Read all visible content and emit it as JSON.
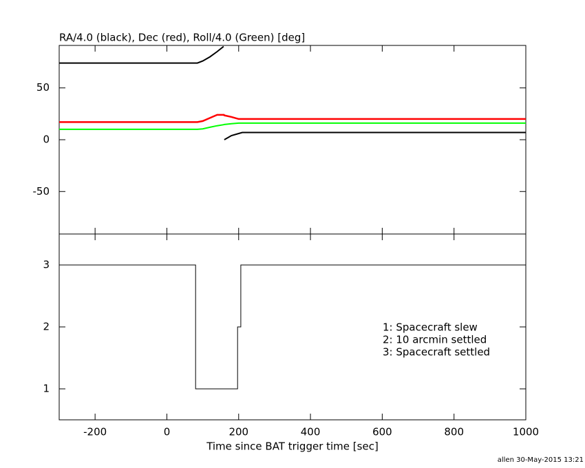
{
  "chart_data": [
    {
      "type": "line",
      "title": "RA/4.0 (black), Dec (red), Roll/4.0 (Green) [deg]",
      "x": [
        -300,
        85,
        100,
        120,
        140,
        158,
        159,
        160,
        180,
        200,
        210,
        350,
        1000
      ],
      "series": [
        {
          "color": "#000000",
          "values": [
            74,
            74,
            76,
            80,
            85,
            90,
            null,
            0,
            4,
            6,
            7,
            7,
            7
          ]
        },
        {
          "color": "#ff0000",
          "values": [
            17,
            17,
            18,
            21,
            24,
            24,
            24,
            23.5,
            22,
            20,
            20,
            20,
            20
          ]
        },
        {
          "color": "#00ff00",
          "values": [
            10,
            10,
            10.5,
            12,
            13.5,
            14.5,
            14.6,
            14.7,
            15.5,
            16,
            16,
            16,
            16
          ]
        }
      ],
      "xlim": [
        -300,
        1000
      ],
      "xticks": [
        -200,
        0,
        200,
        400,
        600,
        800,
        1000
      ],
      "ylim": [
        -91,
        91
      ],
      "yticks": [
        -50,
        0,
        50
      ]
    },
    {
      "type": "line",
      "xlabel": "Time since BAT trigger time [sec]",
      "x": [
        -300,
        80,
        80,
        197,
        197,
        206,
        206,
        1000
      ],
      "series": [
        {
          "color": "#000000",
          "values": [
            3,
            3,
            1,
            1,
            2,
            2,
            3,
            3
          ]
        }
      ],
      "xlim": [
        -300,
        1000
      ],
      "xticks": [
        -200,
        0,
        200,
        400,
        600,
        800,
        1000
      ],
      "ylim": [
        0.5,
        3.5
      ],
      "yticks": [
        1,
        2,
        3
      ],
      "annotations": [
        "1: Spacecraft slew",
        "2: 10 arcmin settled",
        "3: Spacecraft settled"
      ],
      "credit": "allen 30-May-2015 13:21"
    }
  ]
}
